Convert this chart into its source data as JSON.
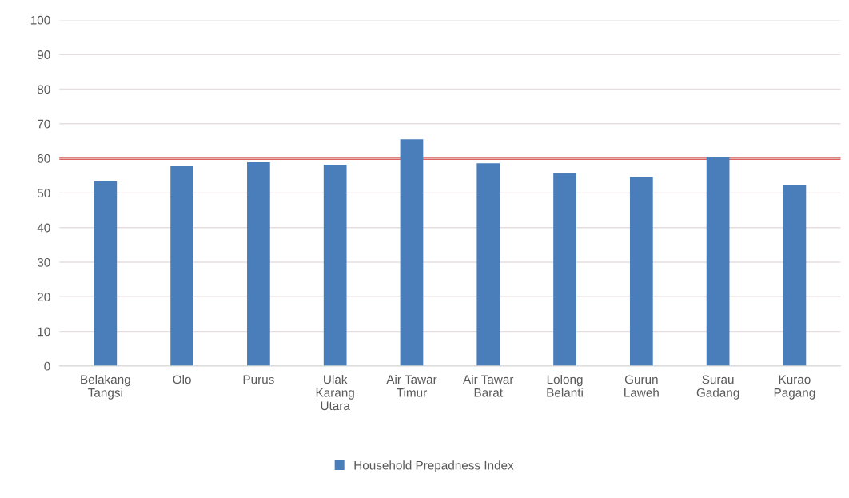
{
  "chart_data": {
    "type": "bar",
    "categories": [
      "Belakang\nTangsi",
      "Olo",
      "Purus",
      "Ulak\nKarang\nUtara",
      "Air Tawar\nTimur",
      "Air Tawar\nBarat",
      "Lolong\nBelanti",
      "Gurun\nLaweh",
      "Surau\nGadang",
      "Kurao\nPagang"
    ],
    "series": [
      {
        "name": "Household Prepadness Index",
        "color": "#4a7ebb",
        "values": [
          53.3,
          57.7,
          58.9,
          58.2,
          65.5,
          58.6,
          55.8,
          54.6,
          60.4,
          52.2
        ]
      }
    ],
    "ylim": [
      0,
      100
    ],
    "yticks": [
      0,
      10,
      20,
      30,
      40,
      50,
      60,
      70,
      80,
      90,
      100
    ],
    "ref_lines": [
      {
        "axis": "y",
        "value": 60,
        "color": "#d42d27"
      }
    ],
    "grid": "y",
    "legend": "bottom"
  }
}
